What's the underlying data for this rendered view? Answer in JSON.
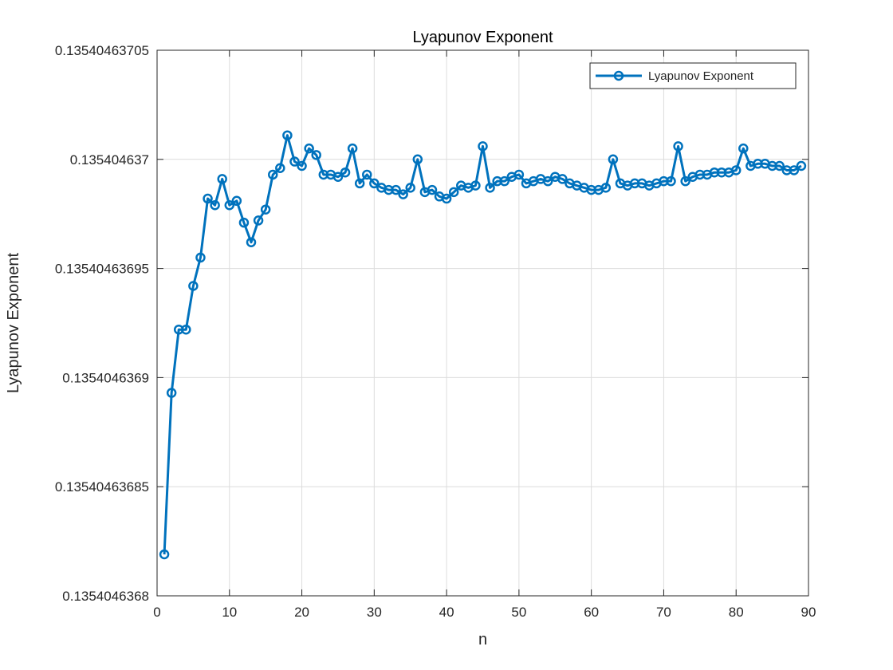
{
  "chart_data": {
    "type": "line",
    "title": "Lyapunov Exponent",
    "xlabel": "n",
    "ylabel": "Lyapunov Exponent",
    "xlim": [
      0,
      90
    ],
    "ylim": [
      0.1354046368,
      0.13540463705
    ],
    "xticks": [
      0,
      10,
      20,
      30,
      40,
      50,
      60,
      70,
      80,
      90
    ],
    "xtick_labels": [
      "0",
      "10",
      "20",
      "30",
      "40",
      "50",
      "60",
      "70",
      "80",
      "90"
    ],
    "yticks": [
      0.1354046368,
      0.13540463685,
      0.1354046369,
      0.13540463695,
      0.135404637,
      0.13540463705
    ],
    "ytick_labels": [
      "0.1354046368",
      "0.13540463685",
      "0.1354046369",
      "0.13540463695",
      "0.135404637",
      "0.13540463705"
    ],
    "grid": true,
    "legend_position": "top-right",
    "series": [
      {
        "name": "Lyapunov Exponent",
        "color": "#0072BD",
        "marker": "circle",
        "x": [
          1,
          2,
          3,
          4,
          5,
          6,
          7,
          8,
          9,
          10,
          11,
          12,
          13,
          14,
          15,
          16,
          17,
          18,
          19,
          20,
          21,
          22,
          23,
          24,
          25,
          26,
          27,
          28,
          29,
          30,
          31,
          32,
          33,
          34,
          35,
          36,
          37,
          38,
          39,
          40,
          41,
          42,
          43,
          44,
          45,
          46,
          47,
          48,
          49,
          50,
          51,
          52,
          53,
          54,
          55,
          56,
          57,
          58,
          59,
          60,
          61,
          62,
          63,
          64,
          65,
          66,
          67,
          68,
          69,
          70,
          71,
          72,
          73,
          74,
          75,
          76,
          77,
          78,
          79,
          80,
          81,
          82,
          83,
          84,
          85,
          86,
          87,
          88,
          89
        ],
        "y": [
          0.135404636819,
          0.135404636893,
          0.135404636922,
          0.135404636922,
          0.135404636942,
          0.135404636955,
          0.135404636982,
          0.135404636979,
          0.135404636991,
          0.135404636979,
          0.135404636981,
          0.135404636971,
          0.135404636962,
          0.135404636972,
          0.135404636977,
          0.135404636993,
          0.135404636996,
          0.135404637011,
          0.135404636999,
          0.135404636997,
          0.135404637005,
          0.135404637002,
          0.135404636993,
          0.135404636993,
          0.135404636992,
          0.135404636994,
          0.135404637005,
          0.135404636989,
          0.135404636993,
          0.135404636989,
          0.135404636987,
          0.135404636986,
          0.135404636986,
          0.135404636984,
          0.135404636987,
          0.135404637,
          0.135404636985,
          0.135404636986,
          0.135404636983,
          0.135404636982,
          0.135404636985,
          0.135404636988,
          0.135404636987,
          0.135404636988,
          0.135404637006,
          0.135404636987,
          0.13540463699,
          0.13540463699,
          0.135404636992,
          0.135404636993,
          0.135404636989,
          0.13540463699,
          0.135404636991,
          0.13540463699,
          0.135404636992,
          0.135404636991,
          0.135404636989,
          0.135404636988,
          0.135404636987,
          0.135404636986,
          0.135404636986,
          0.135404636987,
          0.135404637,
          0.135404636989,
          0.135404636988,
          0.135404636989,
          0.135404636989,
          0.135404636988,
          0.135404636989,
          0.13540463699,
          0.13540463699,
          0.135404637006,
          0.13540463699,
          0.135404636992,
          0.135404636993,
          0.135404636993,
          0.135404636994,
          0.135404636994,
          0.135404636994,
          0.135404636995,
          0.135404637005,
          0.135404636997,
          0.135404636998,
          0.135404636998,
          0.135404636997,
          0.135404636997,
          0.135404636995,
          0.135404636995,
          0.135404636997
        ]
      }
    ]
  }
}
